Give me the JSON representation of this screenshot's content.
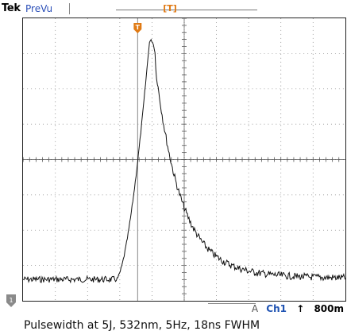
{
  "header": {
    "brand": "Tek",
    "mode": "PreVu",
    "trigger_marker": "T"
  },
  "readout": {
    "acq_flag": "A",
    "source": "Ch1",
    "edge_icon": "rising-edge-icon",
    "level": "800m"
  },
  "channel_marker": "1",
  "caption": "Pulsewidth at 5J, 532nm, 5Hz, 18ns FWHM",
  "colors": {
    "trigger_orange": "#e07a14",
    "channel_blue": "#1f53b3",
    "grid": "#777777",
    "trace": "#111111"
  }
}
